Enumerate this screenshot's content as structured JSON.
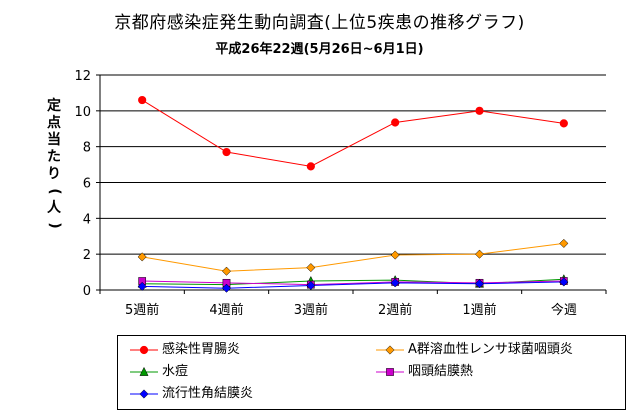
{
  "chart_data": {
    "type": "line",
    "title": "京都府感染症発生動向調査(上位5疾患の推移グラフ)",
    "subtitle": "平成26年22週(5月26日~6月1日)",
    "ylabel": "定点当たり(人)",
    "xlabel": "",
    "ylim": [
      0,
      12
    ],
    "yticks": [
      "0",
      "2",
      "4",
      "6",
      "8",
      "10",
      "12"
    ],
    "categories": [
      "5週前",
      "4週前",
      "3週前",
      "2週前",
      "1週前",
      "今週"
    ],
    "grid": true,
    "legend_position": "bottom",
    "series": [
      {
        "name": "感染性胃腸炎",
        "color": "#ff0000",
        "marker": "circle",
        "values": [
          10.6,
          7.7,
          6.9,
          9.35,
          10.0,
          9.3
        ]
      },
      {
        "name": "A群溶血性レンサ球菌咽頭炎",
        "color": "#ff9900",
        "marker": "diamond",
        "values": [
          1.85,
          1.05,
          1.25,
          1.95,
          2.0,
          2.6
        ]
      },
      {
        "name": "水痘",
        "color": "#009900",
        "marker": "triangle",
        "values": [
          0.35,
          0.3,
          0.5,
          0.55,
          0.35,
          0.6
        ]
      },
      {
        "name": "咽頭結膜熱",
        "color": "#cc00cc",
        "marker": "square",
        "values": [
          0.5,
          0.4,
          0.3,
          0.45,
          0.4,
          0.5
        ]
      },
      {
        "name": "流行性角結膜炎",
        "color": "#0000ff",
        "marker": "diamond",
        "values": [
          0.2,
          0.1,
          0.25,
          0.4,
          0.35,
          0.45
        ]
      }
    ]
  }
}
